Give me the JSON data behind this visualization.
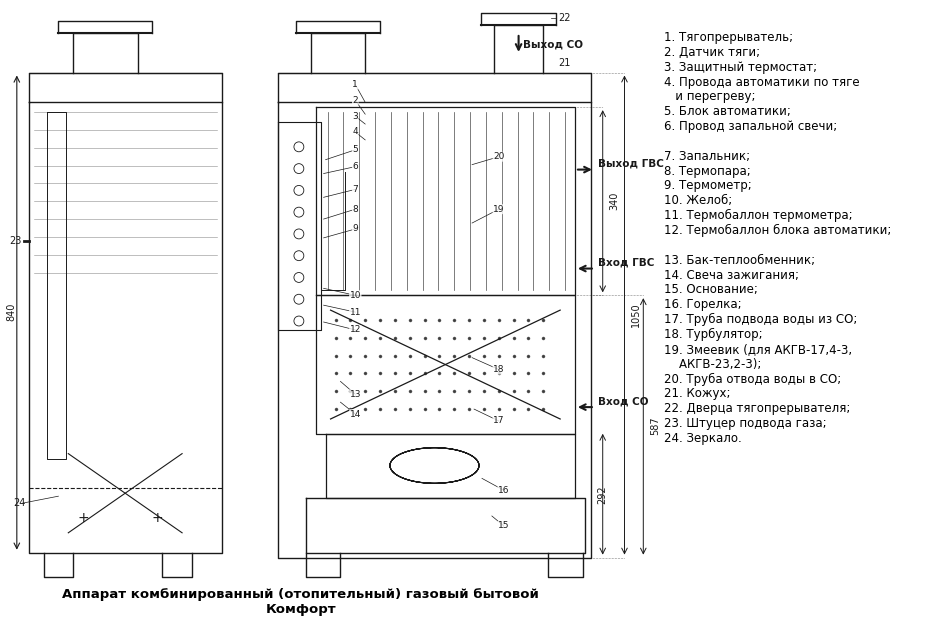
{
  "title": "Аппарат комбинированный (отопительный) газовый бытовой\nКомфорт",
  "bg_color": "#ffffff",
  "legend_text": [
    "1. Тягопрерыватель;",
    "2. Датчик тяги;",
    "3. Защитный термостат;",
    "4. Провода автоматики по тяге",
    "   и перегреву;",
    "5. Блок автоматики;",
    "6. Провод запальной свечи;",
    "",
    "7. Запальник;",
    "8. Термопара;",
    "9. Термометр;",
    "10. Желоб;",
    "11. Термобаллон термометра;",
    "12. Термобаллон блока автоматики;",
    "",
    "13. Бак-теплообменник;",
    "14. Свеча зажигания;",
    "15. Основание;",
    "16. Горелка;",
    "17. Труба подвода воды из СО;",
    "18. Турбулятор;",
    "19. Змеевик (для АКГВ-17,4-3,",
    "    АКГВ-23,2-3);",
    "20. Труба отвода воды в СО;",
    "21. Кожух;",
    "22. Дверца тягопрерывателя;",
    "23. Штуцер подвода газа;",
    "24. Зеркало."
  ],
  "text_color": "#000000",
  "line_color": "#1a1a1a"
}
